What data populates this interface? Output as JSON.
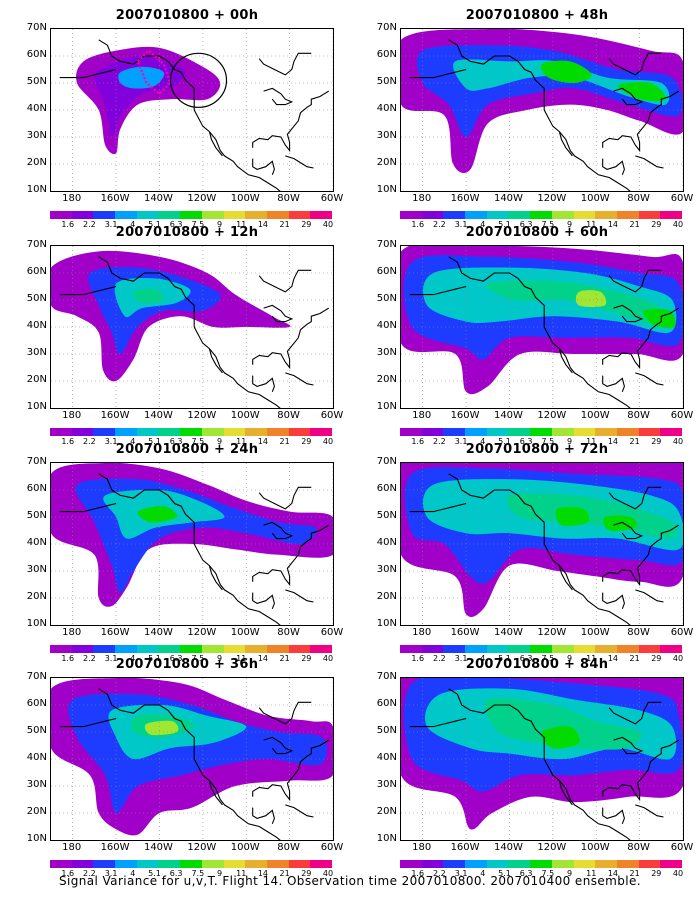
{
  "figure": {
    "caption": "Signal Variance for u,v,T. Flight 14. Observation time 2007010800. 2007010400 ensemble.",
    "latitude_ticks": [
      "70N",
      "60N",
      "50N",
      "40N",
      "30N",
      "20N",
      "10N"
    ],
    "longitude_ticks": [
      "180",
      "160W",
      "140W",
      "120W",
      "100W",
      "80W",
      "60W"
    ],
    "colorbar_labels": [
      "1.6",
      "2.2",
      "3.1",
      "4",
      "5.1",
      "6.3",
      "7.5",
      "9",
      "11",
      "14",
      "21",
      "29",
      "40"
    ],
    "colorbar_colors": [
      "#a000c8",
      "#8200dc",
      "#1e3cff",
      "#00a0ff",
      "#00c8c8",
      "#00d28c",
      "#00dc00",
      "#a0e632",
      "#e6dc32",
      "#e6af2d",
      "#f08228",
      "#fa3c3c",
      "#f00082"
    ]
  },
  "panels": [
    {
      "title": "2007010800 + 00h"
    },
    {
      "title": "2007010800 + 48h"
    },
    {
      "title": "2007010800 + 12h"
    },
    {
      "title": "2007010800 + 60h"
    },
    {
      "title": "2007010800 + 24h"
    },
    {
      "title": "2007010800 + 72h"
    },
    {
      "title": "2007010800 + 36h"
    },
    {
      "title": "2007010800 + 84h"
    }
  ]
}
